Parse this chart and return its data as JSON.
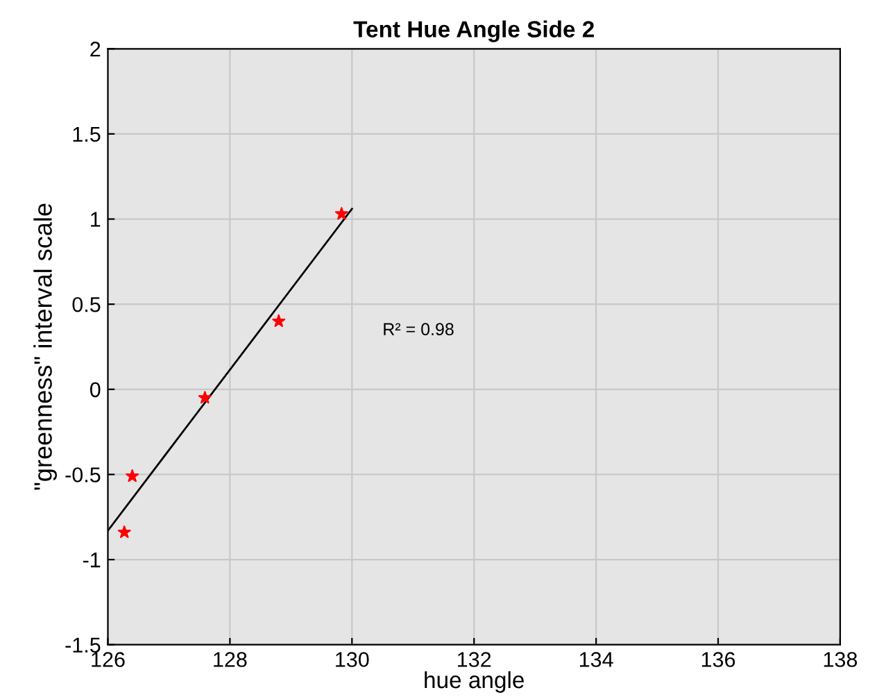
{
  "chart_data": {
    "type": "scatter",
    "title": "Tent Hue Angle Side 2",
    "xlabel": "hue angle",
    "ylabel": "\"greenness\" interval scale",
    "series": [
      {
        "color": "#ff0000",
        "marker": "star",
        "x": [
          126.27,
          126.4,
          127.59,
          128.8,
          129.83
        ],
        "values": [
          -0.84,
          -0.51,
          -0.05,
          0.4,
          1.03
        ]
      },
      {
        "type": "line",
        "color": "#000000",
        "marker": "none",
        "line_style": "solid",
        "x": [
          126.0,
          130.0
        ],
        "values": [
          -0.83,
          1.06
        ]
      }
    ],
    "annotations": [
      "R² = 0.98"
    ],
    "xlim": [
      126,
      138
    ],
    "ylim": [
      -1.5,
      2
    ],
    "xticks": [
      126,
      128,
      130,
      132,
      134,
      136,
      138
    ],
    "yticks": [
      -1.5,
      -1,
      -0.5,
      0,
      0.5,
      1,
      1.5,
      2
    ],
    "grid": true,
    "legend": false
  }
}
